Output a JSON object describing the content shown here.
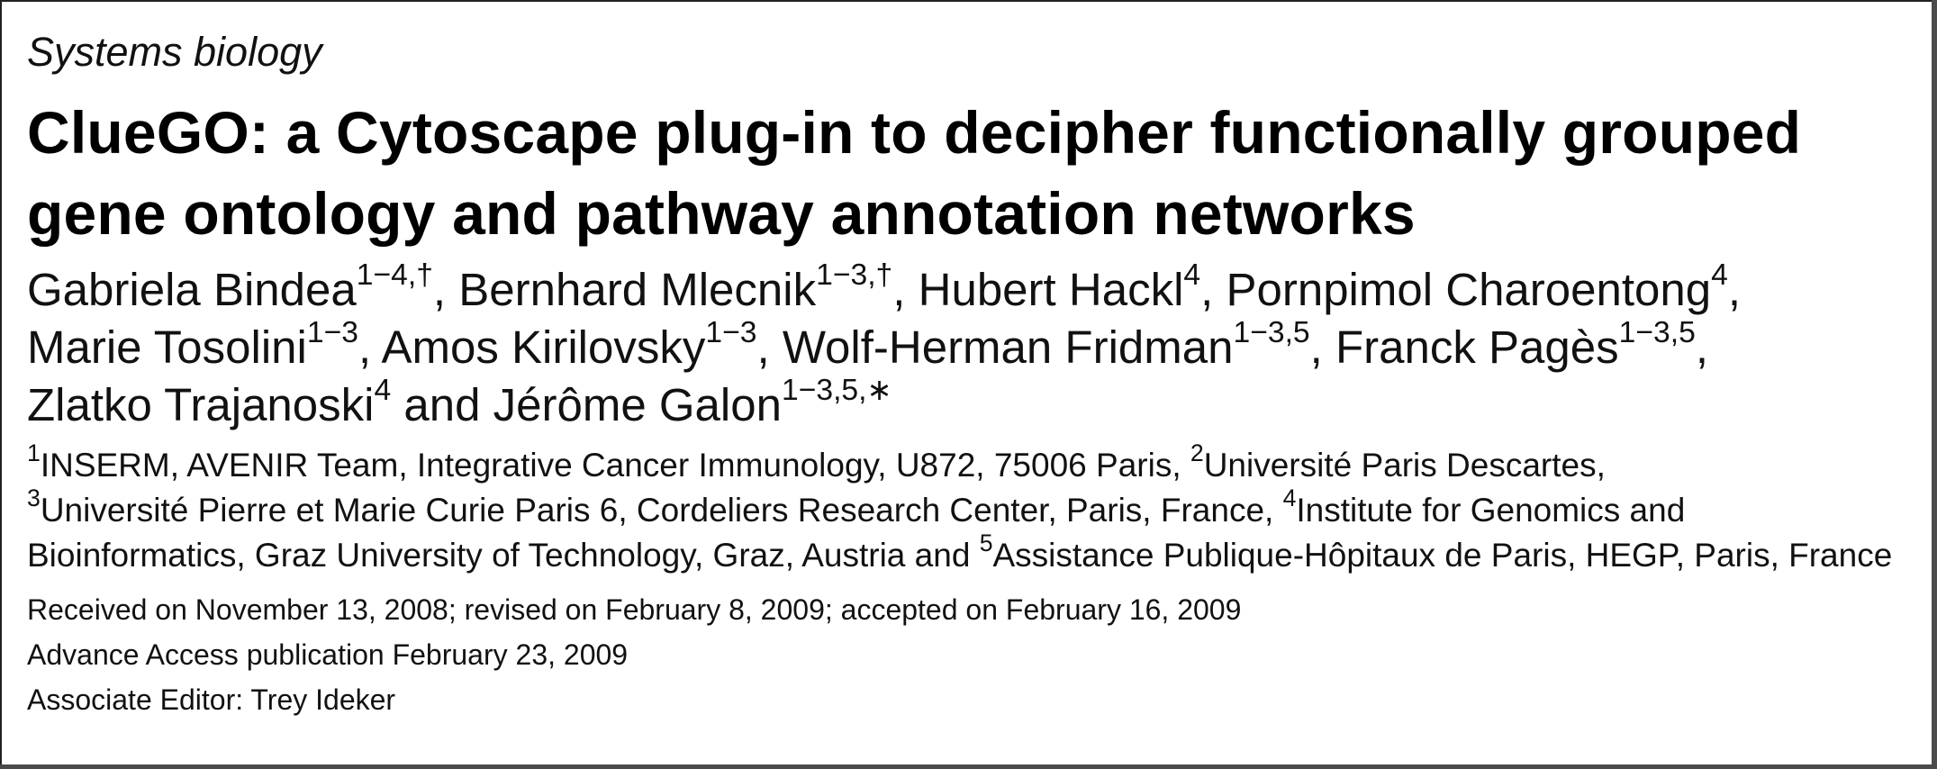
{
  "category": "Systems biology",
  "title_lines": [
    "ClueGO: a Cytoscape plug-in to decipher functionally grouped",
    "gene ontology and pathway annotation networks"
  ],
  "authors": [
    {
      "name": "Gabriela Bindea",
      "sup": "1−4,†"
    },
    {
      "name": "Bernhard Mlecnik",
      "sup": "1−3,†"
    },
    {
      "name": "Hubert Hackl",
      "sup": "4"
    },
    {
      "name": "Pornpimol Charoentong",
      "sup": "4"
    },
    {
      "name": "Marie Tosolini",
      "sup": "1−3"
    },
    {
      "name": "Amos Kirilovsky",
      "sup": "1−3"
    },
    {
      "name": "Wolf-Herman Fridman",
      "sup": "1−3,5"
    },
    {
      "name": "Franck Pagès",
      "sup": "1−3,5"
    },
    {
      "name": "Zlatko Trajanoski",
      "sup": "4"
    },
    {
      "name": "Jérôme Galon",
      "sup": "1−3,5,∗"
    }
  ],
  "author_separators": {
    "comma": ", ",
    "and": " and "
  },
  "affiliations": [
    {
      "sup": "1",
      "text": "INSERM, AVENIR Team, Integrative Cancer Immunology, U872, 75006 Paris, "
    },
    {
      "sup": "2",
      "text": "Université Paris Descartes, "
    },
    {
      "sup": "3",
      "text": "Université Pierre et Marie Curie Paris 6, Cordeliers Research Center, Paris, France, "
    },
    {
      "sup": "4",
      "text": "Institute for Genomics and Bioinformatics, Graz University of Technology, Graz, Austria and "
    },
    {
      "sup": "5",
      "text": "Assistance Publique-Hôpitaux de Paris, HEGP, Paris, France"
    }
  ],
  "received": "Received on November 13, 2008; revised on February 8, 2009; accepted on February 16, 2009",
  "advance_access": "Advance Access publication February 23, 2009",
  "editor": "Associate Editor: Trey Ideker"
}
